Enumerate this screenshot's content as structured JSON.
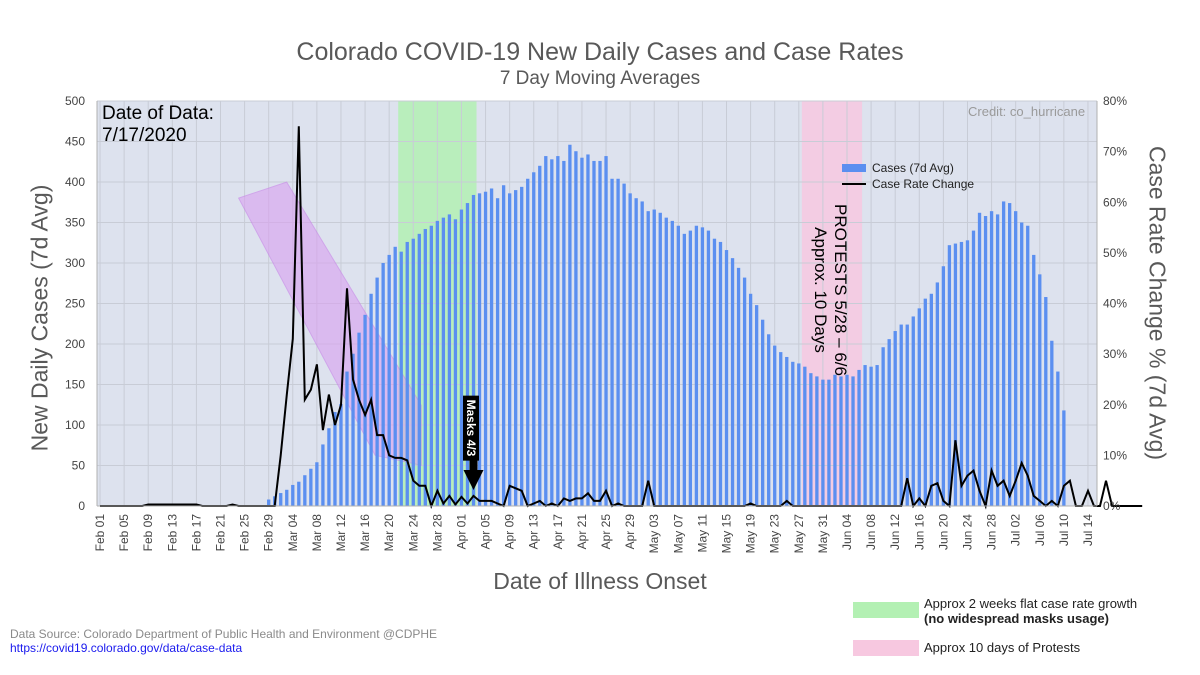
{
  "chart_data": {
    "type": "bar",
    "title": "Colorado COVID-19 New Daily Cases and Case Rates",
    "subtitle": "7 Day Moving Averages",
    "xlabel": "Date of Illness Onset",
    "ylabel": "New Daily Cases (7d Avg)",
    "ylabel_right": "Case Rate Change % (7d Avg)",
    "ylim": [
      0,
      500
    ],
    "ylim_right": [
      0,
      80
    ],
    "yticks": [
      "0",
      "50",
      "100",
      "150",
      "200",
      "250",
      "300",
      "350",
      "400",
      "450",
      "500"
    ],
    "yticks_right": [
      "0%",
      "10%",
      "20%",
      "30%",
      "40%",
      "50%",
      "60%",
      "70%",
      "80%"
    ],
    "x_start": "Feb 01",
    "x_end": "Jul 15",
    "xticks": [
      "Feb 01",
      "Feb 05",
      "Feb 09",
      "Feb 13",
      "Feb 17",
      "Feb 21",
      "Feb 25",
      "Feb 29",
      "Mar 04",
      "Mar 08",
      "Mar 12",
      "Mar 16",
      "Mar 20",
      "Mar 24",
      "Mar 28",
      "Apr 01",
      "Apr 05",
      "Apr 09",
      "Apr 13",
      "Apr 17",
      "Apr 21",
      "Apr 25",
      "Apr 29",
      "May 03",
      "May 07",
      "May 11",
      "May 15",
      "May 19",
      "May 23",
      "May 27",
      "May 31",
      "Jun 04",
      "Jun 08",
      "Jun 12",
      "Jun 16",
      "Jun 20",
      "Jun 24",
      "Jun 28",
      "Jul 02",
      "Jul 06",
      "Jul 10",
      "Jul 14"
    ],
    "grid": true,
    "legend_placement": "top-right",
    "series": [
      {
        "name": "Cases (7d Avg)",
        "type": "bar",
        "axis": "left",
        "color": "#5b8ff0",
        "values": [
          0,
          0,
          0,
          0,
          0,
          0,
          0,
          0,
          0,
          0,
          0,
          0,
          0,
          0,
          0,
          0,
          0,
          0,
          0,
          0,
          0,
          0,
          0,
          0,
          0,
          0,
          0,
          0,
          8,
          12,
          16,
          20,
          26,
          30,
          38,
          46,
          54,
          76,
          96,
          116,
          126,
          166,
          188,
          214,
          236,
          262,
          282,
          300,
          310,
          320,
          314,
          326,
          330,
          336,
          342,
          346,
          352,
          356,
          360,
          354,
          366,
          374,
          384,
          386,
          388,
          392,
          380,
          396,
          386,
          390,
          394,
          404,
          412,
          420,
          432,
          428,
          432,
          426,
          446,
          438,
          430,
          434,
          426,
          426,
          432,
          404,
          404,
          398,
          386,
          380,
          376,
          364,
          366,
          362,
          356,
          352,
          346,
          336,
          340,
          346,
          344,
          340,
          330,
          326,
          316,
          306,
          294,
          282,
          262,
          248,
          230,
          212,
          198,
          190,
          184,
          178,
          176,
          172,
          164,
          160,
          156,
          156,
          162,
          160,
          162,
          160,
          168,
          174,
          172,
          174,
          196,
          206,
          216,
          224,
          224,
          234,
          244,
          256,
          262,
          276,
          296,
          322,
          324,
          326,
          328,
          340,
          362,
          358,
          364,
          360,
          376,
          374,
          364,
          350,
          346,
          310,
          286,
          258,
          204,
          166,
          118
        ]
      },
      {
        "name": "Case Rate Change",
        "type": "line",
        "axis": "right",
        "color": "#000000",
        "values": [
          0,
          0,
          0,
          0,
          0,
          0,
          0,
          0,
          0.3,
          0.3,
          0.3,
          0.3,
          0.3,
          0.3,
          0.3,
          0.3,
          0.3,
          0,
          0,
          0,
          0,
          0,
          0.3,
          0,
          0,
          0,
          0,
          0,
          0,
          0,
          10,
          22,
          33,
          75,
          21,
          23,
          28,
          15,
          22,
          16,
          20,
          43,
          25,
          21,
          18,
          21,
          14,
          14,
          10,
          9.5,
          9.5,
          9,
          5,
          4,
          4,
          0,
          3,
          0.5,
          2,
          0.3,
          1.8,
          0.5,
          2,
          1,
          1,
          1,
          0.5,
          0,
          4,
          3.5,
          3,
          0,
          0.5,
          1,
          0,
          0.5,
          0,
          1.5,
          1,
          1.5,
          1.5,
          2.5,
          1,
          1,
          3,
          0,
          0.5,
          0,
          0,
          0,
          0,
          5,
          0,
          0,
          0,
          0,
          0,
          0,
          0,
          0,
          0,
          0,
          0,
          0,
          0,
          0,
          0,
          0,
          0.5,
          0,
          0,
          0,
          0,
          0,
          1,
          0,
          0,
          0,
          0,
          0,
          0,
          0,
          0,
          0,
          0,
          0,
          0,
          0,
          0,
          0,
          0,
          0,
          0,
          0,
          5.5,
          0,
          1.5,
          0,
          4,
          4.5,
          1,
          0,
          13,
          4,
          6,
          7,
          3,
          0,
          7,
          4,
          5,
          2,
          5,
          8.5,
          6,
          2,
          1,
          0,
          1,
          0,
          4,
          5,
          0,
          0,
          3,
          0,
          0,
          5,
          0,
          0,
          0,
          0,
          0,
          0
        ]
      }
    ],
    "annotations": [
      {
        "text": "Masks 4/3",
        "date": "Apr 03"
      },
      {
        "text": "PROTESTS 5/28 – 6/6",
        "line2": "Approx. 10 Days"
      }
    ],
    "highlights": [
      {
        "label_bold_line": "(no widespread masks usage)",
        "label": "Approx 2 weeks flat case rate growth",
        "start": "Mar 22",
        "end": "Apr 03",
        "color": "#b3f0b3"
      },
      {
        "label": "Approx 10 days of Protests",
        "start": "May 28",
        "end": "Jun 06",
        "color": "#f7c8e0"
      }
    ]
  },
  "date_of_data_label": "Date of Data:",
  "date_of_data_value": "7/17/2020",
  "credit": "Credit: co_hurricane",
  "source_text": "Data Source:  Colorado Department of Public Health and Environment @CDPHE",
  "source_link": "https://covid19.colorado.gov/data/case-data",
  "colors": {
    "plot_bg": "#dde2ee",
    "grid": "#c8ccd6",
    "trend_arrow": "#d9a0f0"
  }
}
